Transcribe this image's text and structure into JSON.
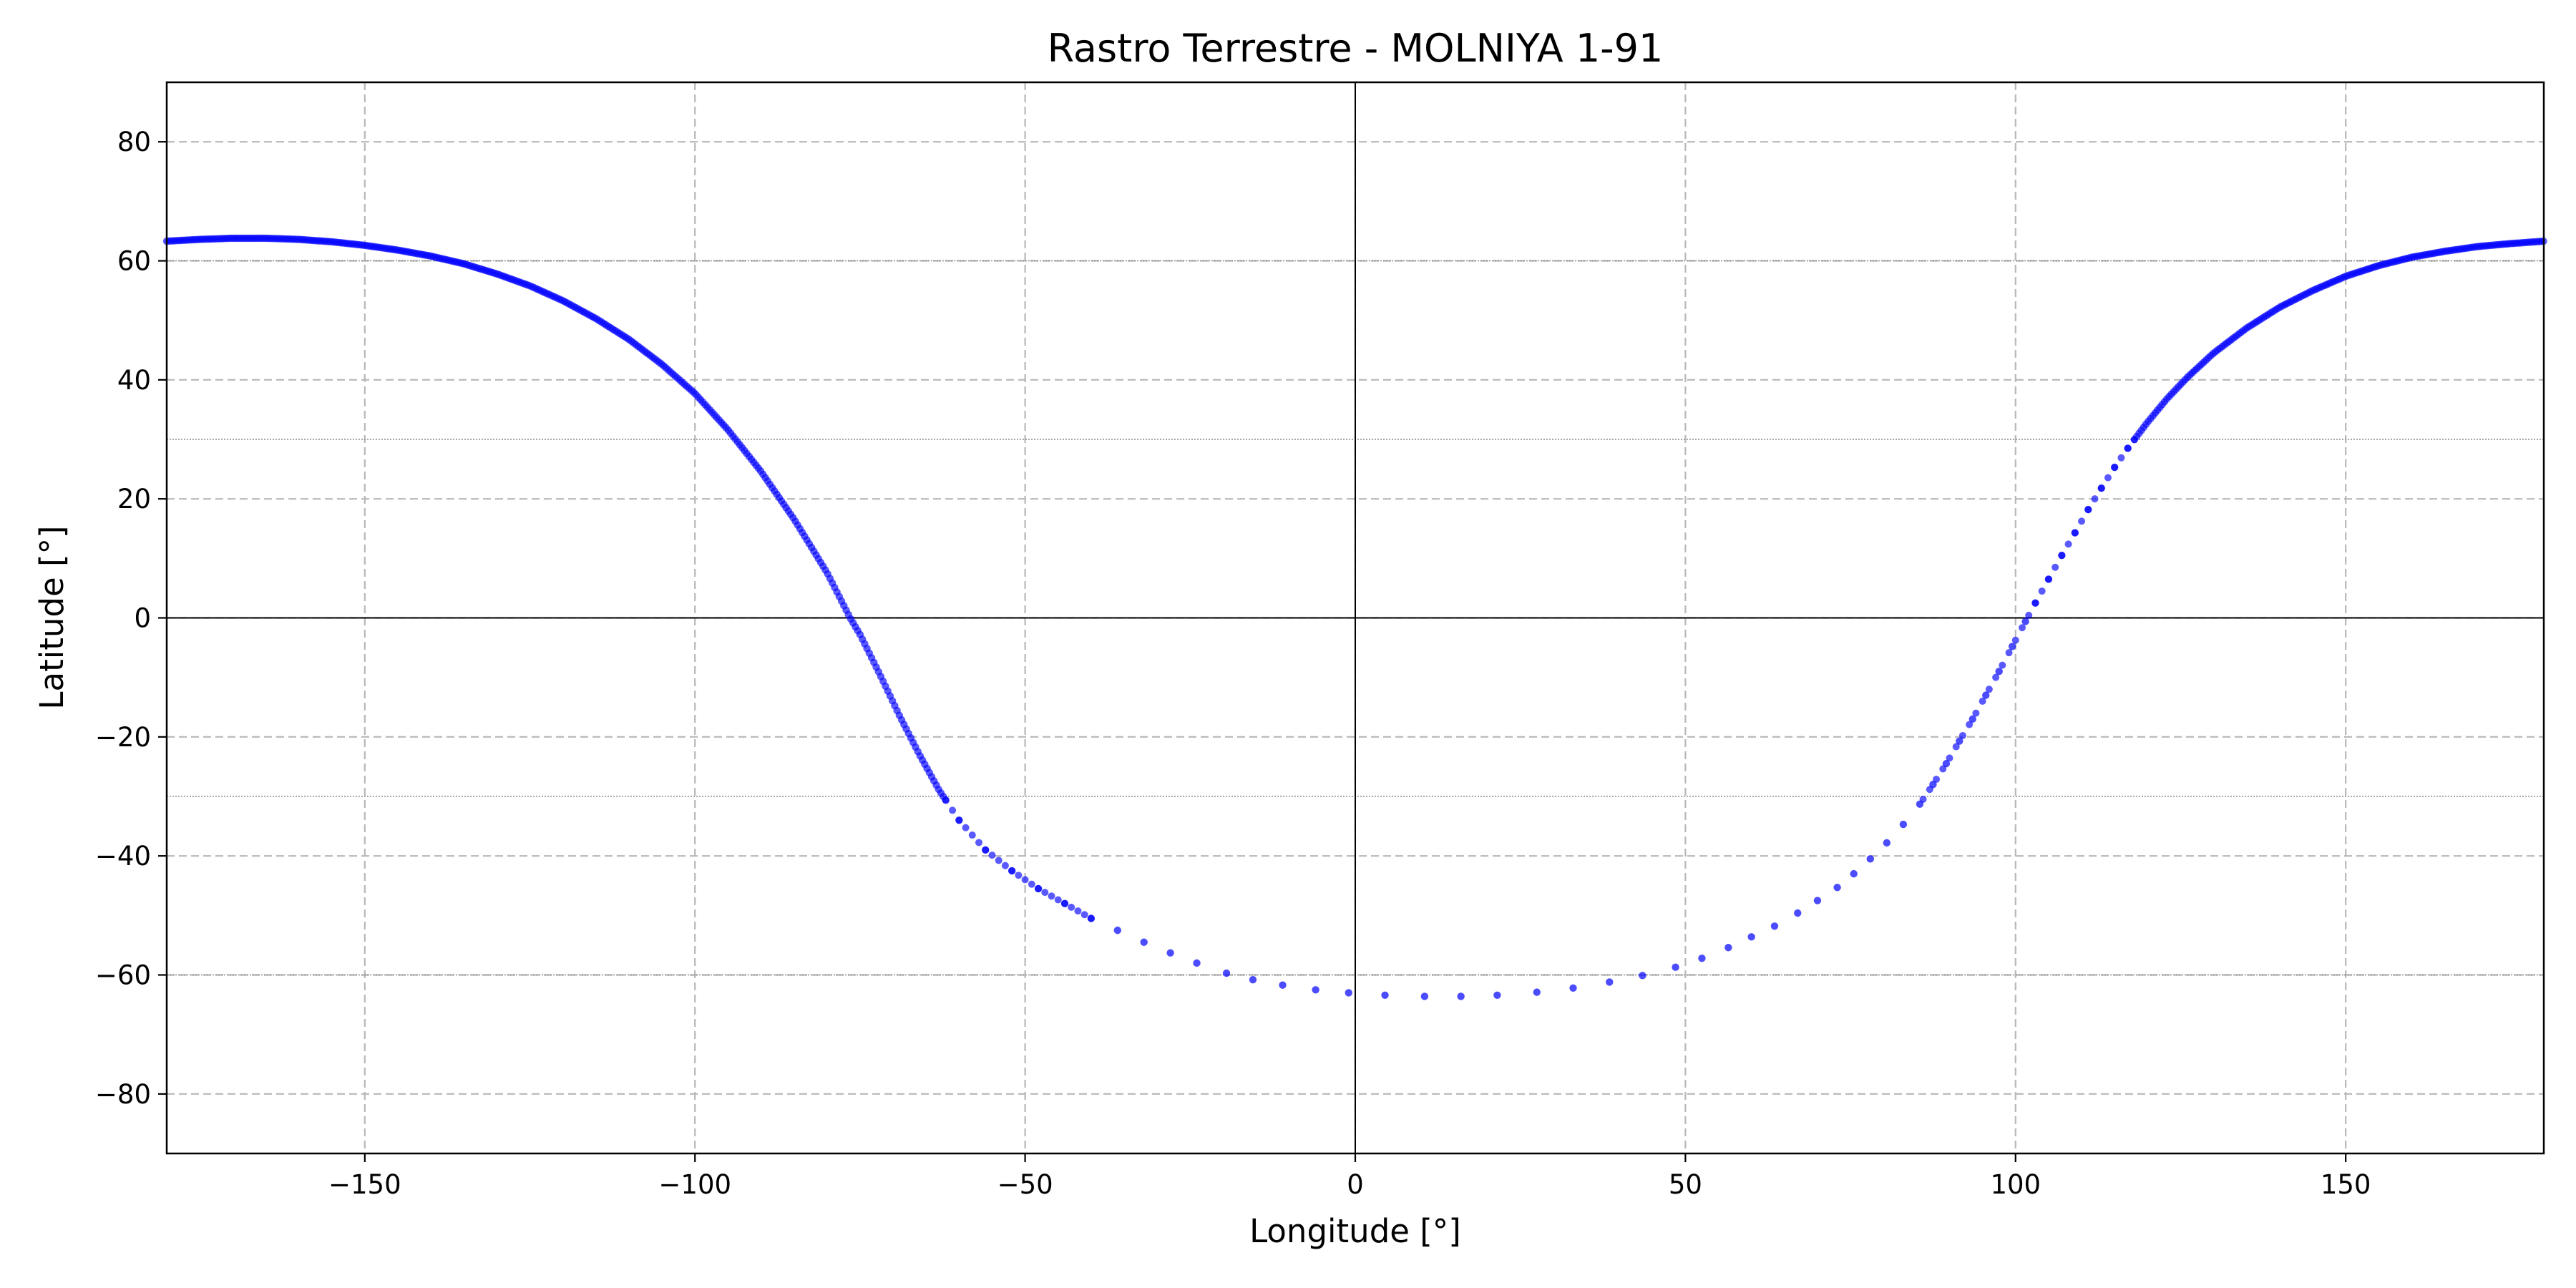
{
  "chart_data": {
    "type": "scatter",
    "title": "Rastro Terrestre - MOLNIYA 1-91",
    "xlabel": "Longitude [°]",
    "ylabel": "Latitude [°]",
    "xlim": [
      -180,
      180
    ],
    "ylim": [
      -90,
      90
    ],
    "xticks": [
      -150,
      -100,
      -50,
      0,
      50,
      100,
      150
    ],
    "xtick_labels": [
      "−150",
      "−100",
      "−50",
      "0",
      "50",
      "100",
      "150"
    ],
    "yticks": [
      -80,
      -60,
      -40,
      -20,
      0,
      20,
      40,
      60,
      80
    ],
    "ytick_labels": [
      "−80",
      "−60",
      "−40",
      "−20",
      "0",
      "20",
      "40",
      "60",
      "80"
    ],
    "grid": true,
    "reference_lines": {
      "solid": {
        "latitude": [
          0
        ],
        "longitude": [
          0
        ]
      },
      "dotted_latitude": [
        60,
        30,
        -30,
        -60
      ]
    },
    "marker_color": "#0000ff",
    "series": [
      {
        "points": [
          [
            -180,
            63.3
          ],
          [
            -175,
            63.6
          ],
          [
            -170,
            63.8
          ],
          [
            -165,
            63.8
          ],
          [
            -160,
            63.6
          ],
          [
            -155,
            63.2
          ],
          [
            -150,
            62.6
          ],
          [
            -145,
            61.8
          ],
          [
            -140,
            60.8
          ],
          [
            -135,
            59.5
          ],
          [
            -130,
            57.8
          ],
          [
            -125,
            55.8
          ],
          [
            -120,
            53.3
          ],
          [
            -115,
            50.3
          ],
          [
            -110,
            46.8
          ],
          [
            -105,
            42.6
          ],
          [
            -100,
            37.7
          ],
          [
            -95,
            31.6
          ],
          [
            -90,
            24.6
          ],
          [
            -85,
            16.6
          ],
          [
            -80,
            7.6
          ],
          [
            -76.5,
            0
          ],
          [
            -75,
            -2.8
          ],
          [
            -72,
            -9.5
          ],
          [
            -69,
            -16.5
          ],
          [
            -66,
            -23
          ],
          [
            -63,
            -29
          ],
          [
            -60,
            -34
          ],
          [
            -56,
            -39
          ],
          [
            -52,
            -42.5
          ],
          [
            -48,
            -45.5
          ],
          [
            -44,
            -48
          ],
          [
            -40,
            -50.5
          ],
          [
            -36,
            -52.5
          ],
          [
            -32,
            -54.5
          ],
          [
            -28,
            -56.3
          ],
          [
            -24,
            -58
          ],
          [
            -19.5,
            -59.7
          ],
          [
            -15.5,
            -60.8
          ],
          [
            -11,
            -61.7
          ],
          [
            -6,
            -62.5
          ],
          [
            -1,
            -63
          ],
          [
            4.5,
            -63.4
          ],
          [
            10.5,
            -63.6
          ],
          [
            16,
            -63.6
          ],
          [
            21.5,
            -63.4
          ],
          [
            27.5,
            -62.9
          ],
          [
            33,
            -62.2
          ],
          [
            38.5,
            -61.2
          ],
          [
            43.5,
            -60.1
          ],
          [
            48.5,
            -58.7
          ],
          [
            52.5,
            -57.2
          ],
          [
            56.5,
            -55.4
          ],
          [
            60,
            -53.6
          ],
          [
            63.5,
            -51.8
          ],
          [
            67,
            -49.6
          ],
          [
            70,
            -47.5
          ],
          [
            73,
            -45.3
          ],
          [
            75.5,
            -43
          ],
          [
            78,
            -40.5
          ],
          [
            80.5,
            -37.8
          ],
          [
            83,
            -34.7
          ],
          [
            85.5,
            -31.3
          ],
          [
            87.5,
            -28
          ],
          [
            89.5,
            -24.5
          ],
          [
            91.5,
            -20.7
          ],
          [
            93.5,
            -17
          ],
          [
            95.5,
            -13
          ],
          [
            97.5,
            -9
          ],
          [
            99.5,
            -4.8
          ],
          [
            101.5,
            -0.6
          ],
          [
            103,
            2.5
          ],
          [
            105,
            6.5
          ],
          [
            107,
            10.5
          ],
          [
            109,
            14.3
          ],
          [
            111,
            18.2
          ],
          [
            113,
            21.8
          ],
          [
            115,
            25.3
          ],
          [
            117,
            28.5
          ],
          [
            120,
            32.9
          ],
          [
            123,
            36.9
          ],
          [
            126,
            40.4
          ],
          [
            130,
            44.5
          ],
          [
            135,
            48.7
          ],
          [
            140,
            52.2
          ],
          [
            145,
            55
          ],
          [
            150,
            57.4
          ],
          [
            155,
            59.2
          ],
          [
            160,
            60.6
          ],
          [
            165,
            61.6
          ],
          [
            170,
            62.4
          ],
          [
            175,
            62.9
          ],
          [
            180,
            63.3
          ]
        ]
      }
    ]
  }
}
